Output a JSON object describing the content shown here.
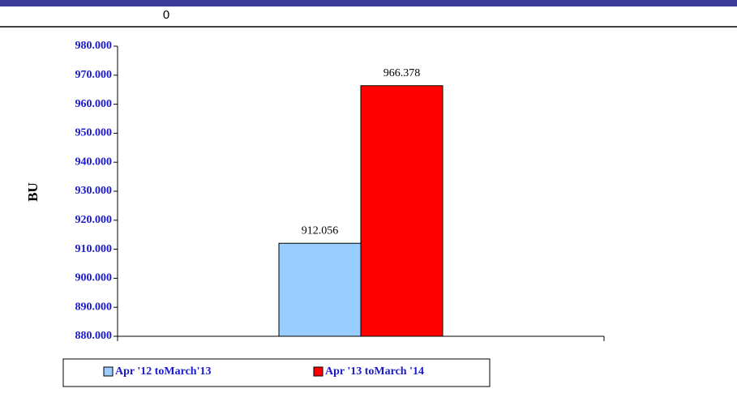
{
  "header": {
    "text": "0"
  },
  "chart_data": {
    "type": "bar",
    "y_label": "BU",
    "categories": [
      null
    ],
    "series": [
      {
        "name": "Apr '12 toMarch'13",
        "color": "#99ccff",
        "values": [
          912.056
        ]
      },
      {
        "name": "Apr '13 toMarch '14",
        "color": "#ff0000",
        "values": [
          966.378
        ]
      }
    ],
    "ylim": [
      880,
      980
    ],
    "yticks": [
      {
        "value": 880,
        "label": "880.000"
      },
      {
        "value": 890,
        "label": "890.000"
      },
      {
        "value": 900,
        "label": "900.000"
      },
      {
        "value": 910,
        "label": "910.000"
      },
      {
        "value": 920,
        "label": "920.000"
      },
      {
        "value": 930,
        "label": "930.000"
      },
      {
        "value": 940,
        "label": "940.000"
      },
      {
        "value": 950,
        "label": "950.000"
      },
      {
        "value": 960,
        "label": "960.000"
      },
      {
        "value": 970,
        "label": "970.000"
      },
      {
        "value": 980,
        "label": "980.000"
      }
    ],
    "grid": false,
    "legend": "bottom"
  }
}
